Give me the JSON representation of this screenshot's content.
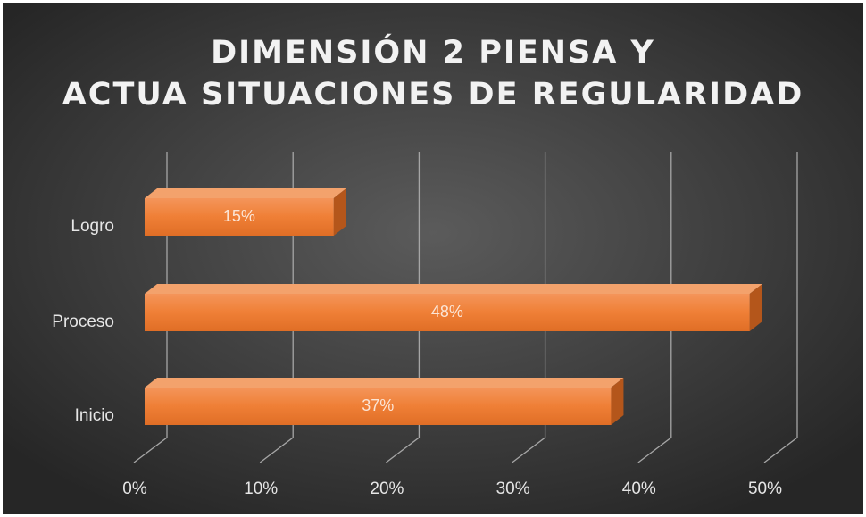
{
  "chart_data": {
    "type": "bar3d_horizontal",
    "title": "DIMENSIÓN 2 PIENSA Y ACTUA SITUACIONES DE REGULARIDAD",
    "categories": [
      "Logro",
      "Proceso",
      "Inicio"
    ],
    "values": [
      15,
      48,
      37
    ],
    "value_labels": [
      "15%",
      "48%",
      "37%"
    ],
    "color": "#ed7d31",
    "xlim": [
      0,
      50
    ],
    "xticks": [
      {
        "value": 0,
        "label": "0%"
      },
      {
        "value": 10,
        "label": "10%"
      },
      {
        "value": 20,
        "label": "20%"
      },
      {
        "value": 30,
        "label": "30%"
      },
      {
        "value": 40,
        "label": "40%"
      },
      {
        "value": 50,
        "label": "50%"
      }
    ],
    "grid": true
  }
}
